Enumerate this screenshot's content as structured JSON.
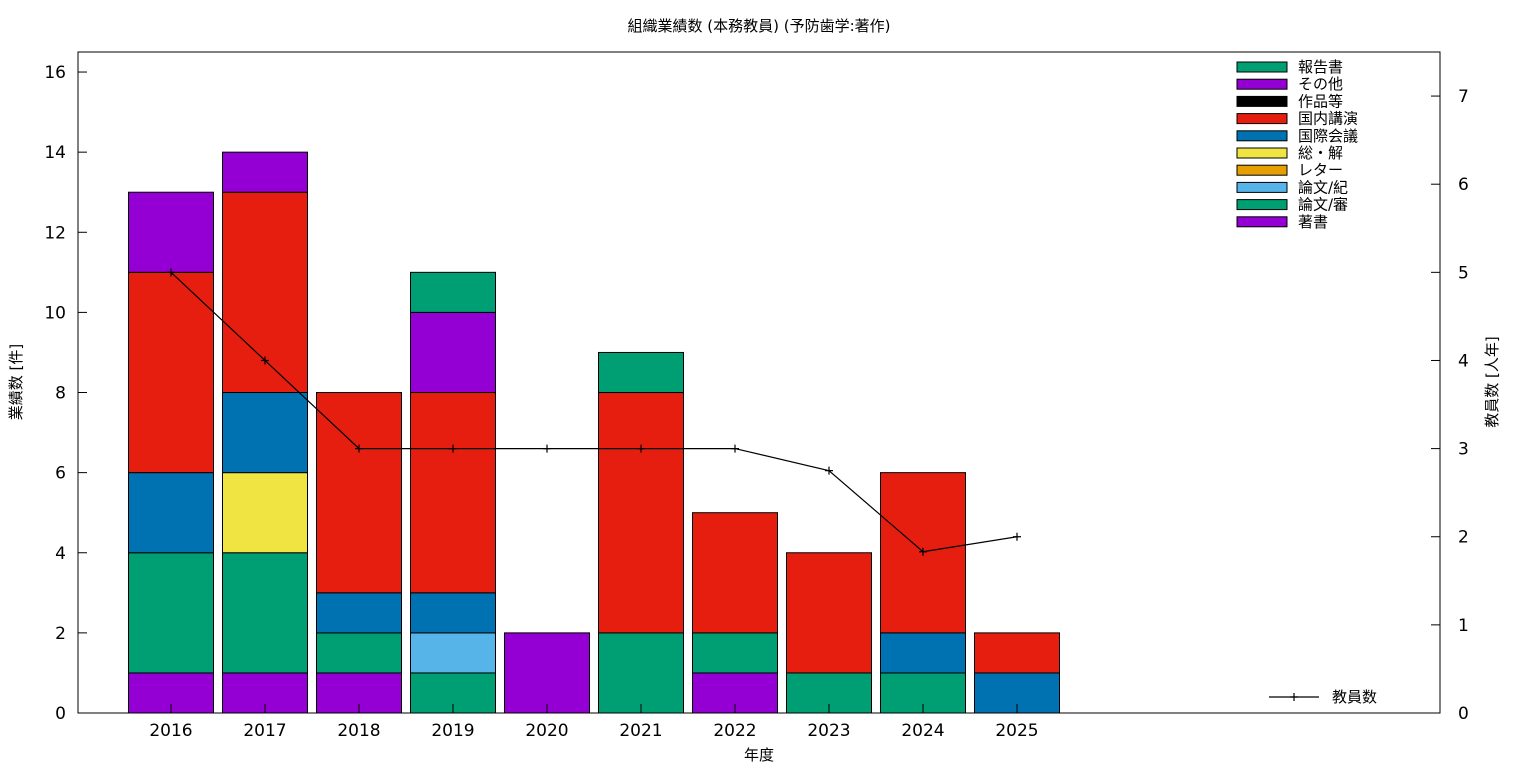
{
  "chart_data": {
    "type": "bar",
    "stacked": true,
    "title": "組織業績数 (本務教員) (予防歯学:著作)",
    "xlabel": "年度",
    "ylabel": "業績数 [件]",
    "y2label": "教員数 [人年]",
    "ylim": [
      0,
      16.5
    ],
    "y2lim": [
      0,
      7.5
    ],
    "yticks": [
      "0",
      "2",
      "4",
      "6",
      "8",
      "10",
      "12",
      "14",
      "16"
    ],
    "y2ticks": [
      "0",
      "1",
      "2",
      "3",
      "4",
      "5",
      "6",
      "7"
    ],
    "legend_position": "top-right",
    "categories": [
      "2016",
      "2017",
      "2018",
      "2019",
      "2020",
      "2021",
      "2022",
      "2023",
      "2024",
      "2025"
    ],
    "series": [
      {
        "name": "著書",
        "color": "#9400d3",
        "values": [
          1,
          1,
          1,
          0,
          2,
          0,
          1,
          0,
          0,
          0
        ]
      },
      {
        "name": "論文/審",
        "color": "#009e73",
        "values": [
          3,
          3,
          1,
          1,
          0,
          2,
          1,
          1,
          1,
          0
        ]
      },
      {
        "name": "論文/紀",
        "color": "#56b4e9",
        "values": [
          0,
          0,
          0,
          1,
          0,
          0,
          0,
          0,
          0,
          0
        ]
      },
      {
        "name": "レター",
        "color": "#e69f00",
        "values": [
          0,
          0,
          0,
          0,
          0,
          0,
          0,
          0,
          0,
          0
        ]
      },
      {
        "name": "総・解",
        "color": "#f0e442",
        "values": [
          0,
          2,
          0,
          0,
          0,
          0,
          0,
          0,
          0,
          0
        ]
      },
      {
        "name": "国際会議",
        "color": "#0072b2",
        "values": [
          2,
          2,
          1,
          1,
          0,
          0,
          0,
          0,
          1,
          1
        ]
      },
      {
        "name": "国内講演",
        "color": "#e51e10",
        "values": [
          5,
          5,
          5,
          5,
          0,
          6,
          3,
          3,
          4,
          1
        ]
      },
      {
        "name": "作品等",
        "color": "#000000",
        "values": [
          0,
          0,
          0,
          0,
          0,
          0,
          0,
          0,
          0,
          0
        ]
      },
      {
        "name": "その他",
        "color": "#9400d3",
        "values": [
          2,
          1,
          0,
          2,
          0,
          0,
          0,
          0,
          0,
          0
        ]
      },
      {
        "name": "報告書",
        "color": "#009e73",
        "values": [
          0,
          0,
          0,
          1,
          0,
          1,
          0,
          0,
          0,
          0
        ]
      }
    ],
    "line_series": {
      "name": "教員数",
      "axis": "y2",
      "color": "#000000",
      "x": [
        "2016",
        "2017",
        "2018",
        "2019",
        "2020",
        "2021",
        "2022",
        "2023",
        "2024",
        "2025"
      ],
      "values": [
        5,
        4,
        3,
        3,
        3,
        3,
        3,
        2.75,
        1.83,
        2
      ]
    }
  }
}
